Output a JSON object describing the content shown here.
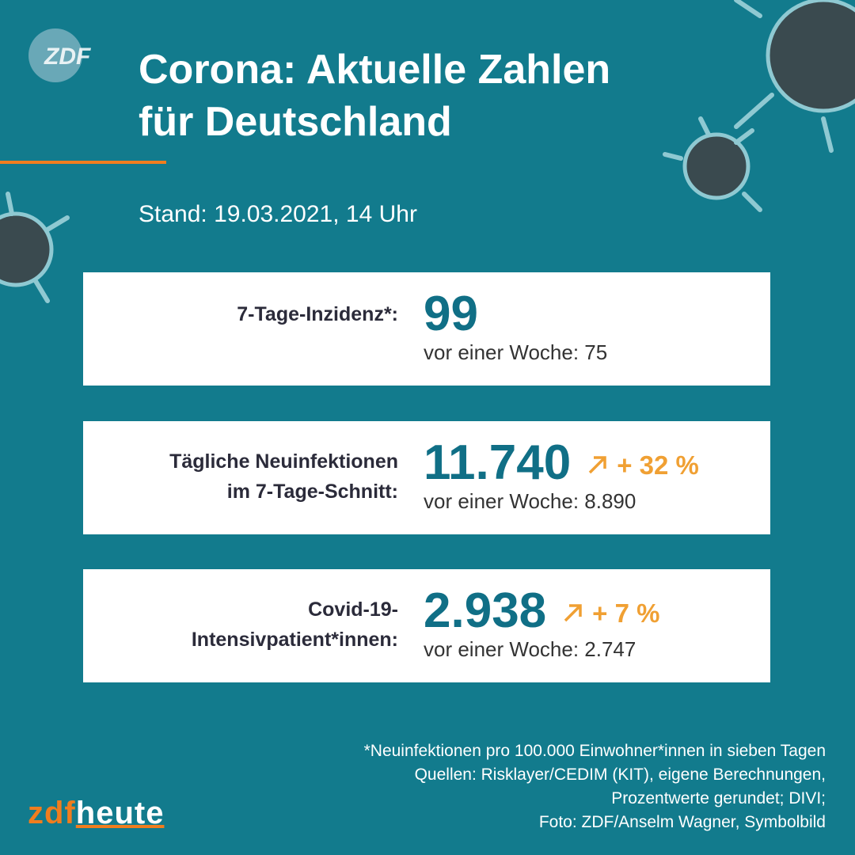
{
  "header": {
    "logo": "ZDF",
    "title_lines": [
      "Corona: Aktuelle Zahlen",
      "für Deutschland"
    ],
    "stand": "Stand: 19.03.2021, 14 Uhr"
  },
  "cards": [
    {
      "label_lines": [
        "7-Tage-Inzidenz*:"
      ],
      "value": "99",
      "previous": "vor einer Woche: 75"
    },
    {
      "label_lines": [
        "Tägliche Neuinfektionen",
        "im 7-Tage-Schnitt:"
      ],
      "value": "11.740",
      "change": "+ 32 %",
      "previous": "vor einer Woche: 8.890"
    },
    {
      "label_lines": [
        "Covid-19-",
        "Intensivpatient*innen:"
      ],
      "value": "2.938",
      "change": "+ 7 %",
      "previous": "vor einer Woche: 2.747"
    }
  ],
  "footer": {
    "notes": [
      "*Neuinfektionen pro 100.000 Einwohner*innen in sieben Tagen",
      "Quellen: Risklayer/CEDIM (KIT), eigene Berechnungen,",
      "Prozentwerte gerundet; DIVI;",
      "Foto: ZDF/Anselm Wagner, Symbolbild"
    ],
    "brand": {
      "first": "zdf",
      "second": "heute"
    }
  }
}
